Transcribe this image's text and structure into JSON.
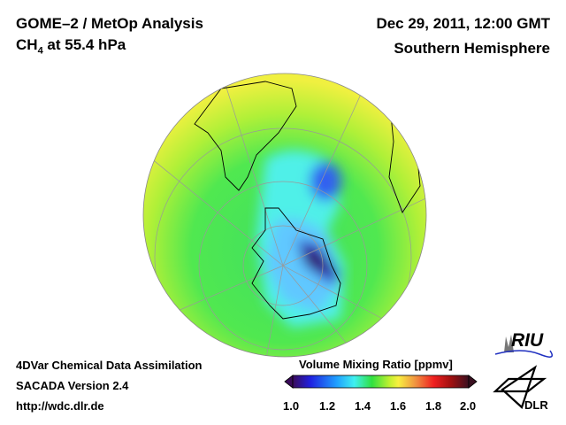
{
  "header": {
    "title": "GOME–2 / MetOp Analysis",
    "species": "CH",
    "species_sub": "4",
    "level": " at 55.4 hPa",
    "datetime": "Dec 29, 2011, 12:00 GMT",
    "region": "Southern Hemisphere"
  },
  "footer": {
    "method": "4DVar Chemical Data Assimilation",
    "version": "SACADA Version 2.4",
    "url": "http://wdc.dlr.de"
  },
  "colorbar": {
    "title": "Volume Mixing Ratio [ppmv]",
    "ticks": [
      "1.0",
      "1.2",
      "1.4",
      "1.6",
      "1.8",
      "2.0"
    ],
    "min": 1.0,
    "max": 2.0,
    "colors": [
      "#3a0a5a",
      "#2020e0",
      "#20a0ff",
      "#40f0f0",
      "#30e040",
      "#c0f030",
      "#f8f040",
      "#f09040",
      "#f02020",
      "#a01010",
      "#3a1020"
    ]
  },
  "logos": {
    "riu": "RIU",
    "dlr": "DLR"
  }
}
